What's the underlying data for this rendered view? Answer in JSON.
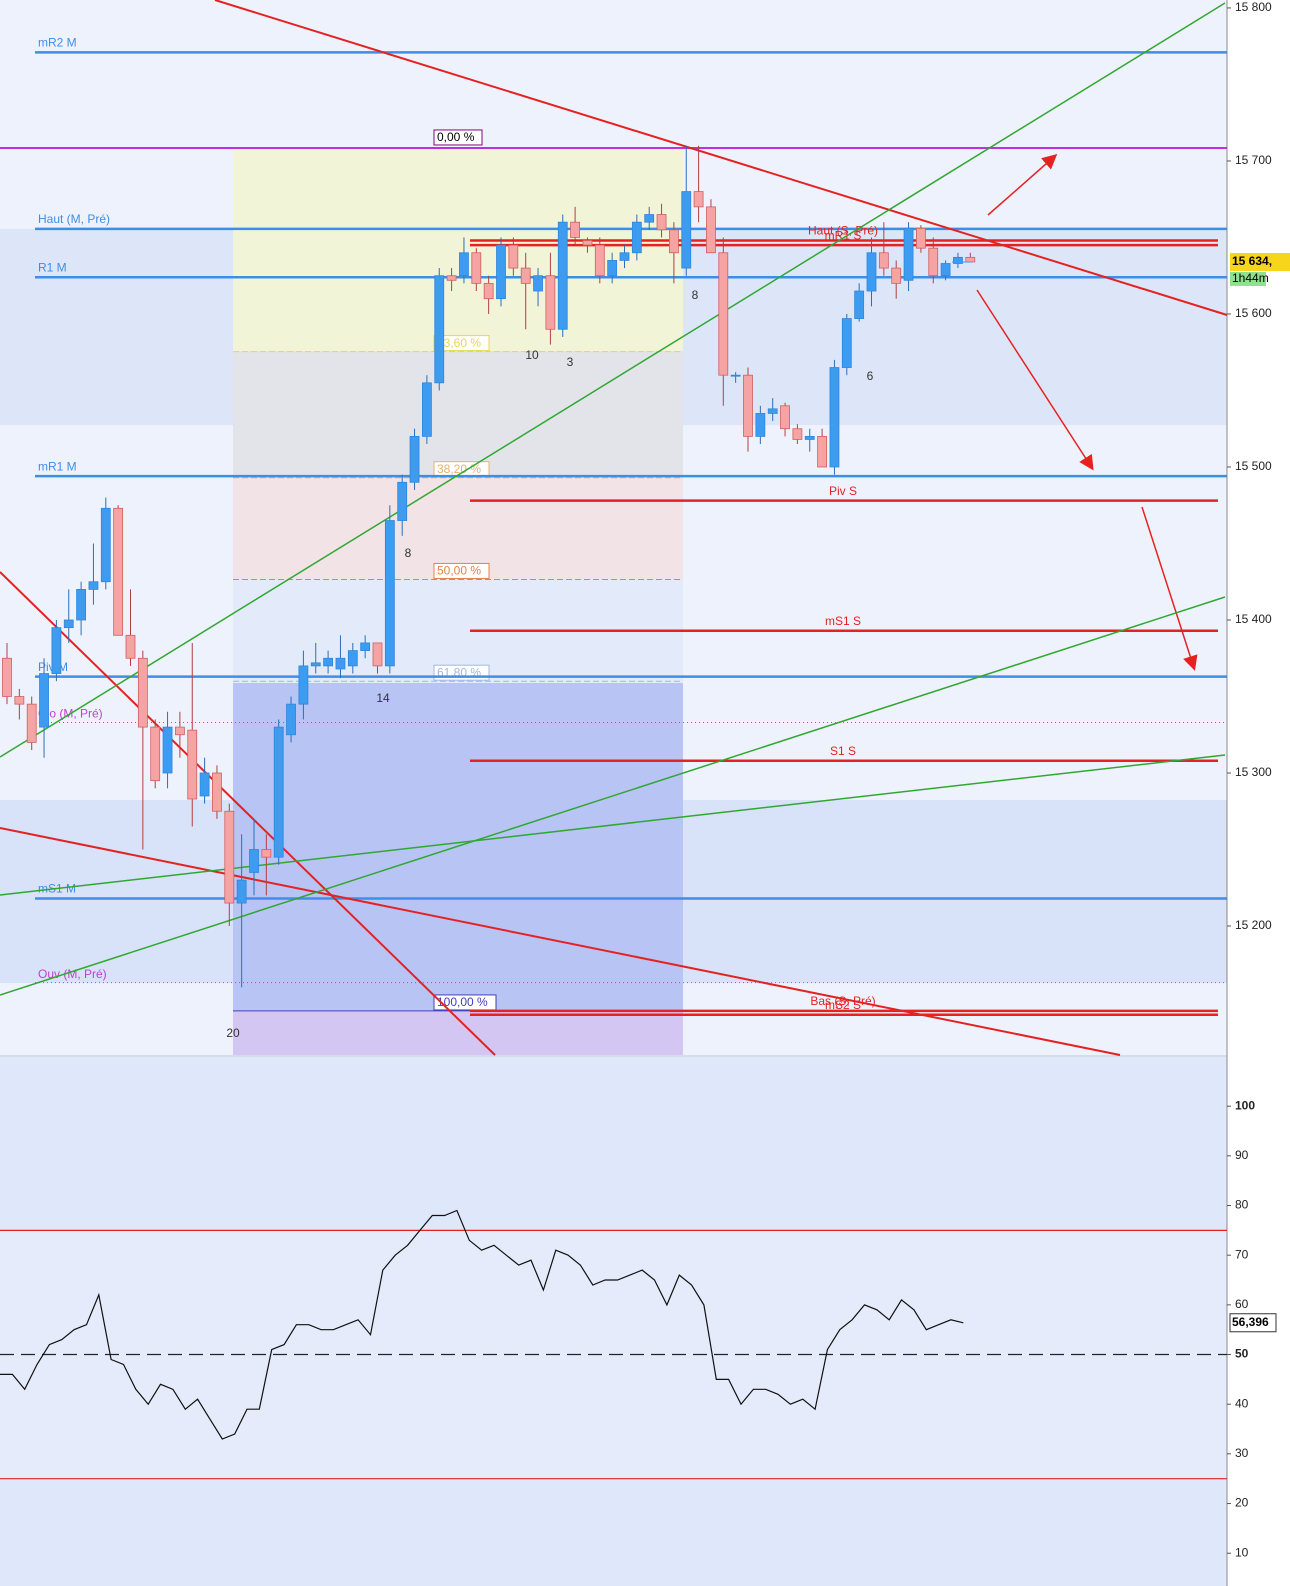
{
  "chart_data": [
    {
      "type": "candlestick",
      "ylim": [
        15115.7,
        15805.2
      ],
      "yticks": [
        {
          "value": 15800,
          "label": "15 800"
        },
        {
          "value": 15700,
          "label": "15 700"
        },
        {
          "value": 15600,
          "label": "15 600"
        },
        {
          "value": 15500,
          "label": "15 500"
        },
        {
          "value": 15400,
          "label": "15 400"
        },
        {
          "value": 15300,
          "label": "15 300"
        },
        {
          "value": 15200,
          "label": "15 200"
        }
      ],
      "up_color": "#3d9cf0",
      "down_color": "#f5a3a3",
      "open": [
        15375,
        15350,
        15345,
        15330,
        15365,
        15395,
        15400,
        15420,
        15425,
        15473,
        15390,
        15375,
        15330,
        15300,
        15330,
        15328,
        15285,
        15300,
        15275,
        15215,
        15235,
        15250,
        15245,
        15325,
        15345,
        15370,
        15370,
        15368,
        15370,
        15380,
        15385,
        15370,
        15465,
        15490,
        15520,
        15555,
        15625,
        15625,
        15640,
        15620,
        15610,
        15645,
        15630,
        15615,
        15625,
        15590,
        15660,
        15648,
        15645,
        15625,
        15635,
        15640,
        15660,
        15665,
        15655,
        15630,
        15680,
        15670,
        15640,
        15560,
        15560,
        15520,
        15535,
        15540,
        15525,
        15518,
        15520,
        15500,
        15565,
        15597,
        15615,
        15640,
        15630,
        15622,
        15656,
        15643,
        15625,
        15633,
        15637
      ],
      "high": [
        15385,
        15355,
        15350,
        15375,
        15400,
        15420,
        15425,
        15450,
        15480,
        15475,
        15420,
        15380,
        15335,
        15340,
        15340,
        15385,
        15310,
        15305,
        15280,
        15260,
        15270,
        15260,
        15335,
        15350,
        15380,
        15385,
        15380,
        15390,
        15385,
        15390,
        15385,
        15475,
        15495,
        15525,
        15560,
        15630,
        15630,
        15650,
        15643,
        15625,
        15650,
        15650,
        15640,
        15630,
        15640,
        15665,
        15670,
        15650,
        15650,
        15640,
        15645,
        15665,
        15670,
        15672,
        15660,
        15710,
        15710,
        15675,
        15650,
        15562,
        15565,
        15540,
        15545,
        15542,
        15528,
        15525,
        15525,
        15570,
        15600,
        15620,
        15650,
        15660,
        15635,
        15660,
        15658,
        15650,
        15635,
        15640,
        15640
      ],
      "low": [
        15345,
        15335,
        15315,
        15310,
        15360,
        15385,
        15390,
        15410,
        15420,
        15390,
        15370,
        15250,
        15290,
        15290,
        15310,
        15265,
        15280,
        15270,
        15200,
        15160,
        15220,
        15220,
        15240,
        15320,
        15335,
        15365,
        15365,
        15362,
        15365,
        15375,
        15365,
        15365,
        15455,
        15485,
        15515,
        15550,
        15615,
        15620,
        15615,
        15600,
        15605,
        15625,
        15590,
        15605,
        15580,
        15585,
        15645,
        15640,
        15620,
        15620,
        15630,
        15635,
        15655,
        15650,
        15620,
        15625,
        15660,
        15640,
        15540,
        15555,
        15510,
        15515,
        15530,
        15520,
        15515,
        15510,
        15500,
        15495,
        15560,
        15595,
        15605,
        15625,
        15610,
        15615,
        15640,
        15620,
        15622,
        15630,
        15634
      ],
      "close": [
        15350,
        15345,
        15320,
        15365,
        15395,
        15400,
        15420,
        15425,
        15473,
        15390,
        15375,
        15330,
        15295,
        15330,
        15325,
        15283,
        15300,
        15275,
        15215,
        15230,
        15250,
        15245,
        15330,
        15345,
        15370,
        15372,
        15375,
        15375,
        15380,
        15385,
        15370,
        15465,
        15490,
        15520,
        15555,
        15625,
        15622,
        15640,
        15620,
        15610,
        15645,
        15630,
        15620,
        15625,
        15590,
        15660,
        15650,
        15645,
        15625,
        15635,
        15640,
        15660,
        15665,
        15655,
        15640,
        15680,
        15670,
        15640,
        15560,
        15560,
        15520,
        15535,
        15538,
        15525,
        15518,
        15520,
        15500,
        15565,
        15597,
        15615,
        15640,
        15630,
        15620,
        15656,
        15643,
        15625,
        15633,
        15637,
        15634
      ],
      "last_price": {
        "value": 15634,
        "label": "15 634,"
      },
      "timer": "1h44m",
      "levels": [
        {
          "name": "mR2 M",
          "value": 15771,
          "color": "#3d8ee8",
          "anchor": "left"
        },
        {
          "name": "Haut (M, Pré)",
          "value": 15655.6,
          "color": "#3d8ee8",
          "anchor": "left"
        },
        {
          "name": "Haut (S, Pré)",
          "value": 15648,
          "color": "#e52222",
          "anchor": "center"
        },
        {
          "name": "mR1 S",
          "value": 15645,
          "color": "#e52222",
          "anchor": "center"
        },
        {
          "name": "R1 M",
          "value": 15624,
          "color": "#3d8ee8",
          "anchor": "left"
        },
        {
          "name": "mR1 M",
          "value": 15494,
          "color": "#3d8ee8",
          "anchor": "left"
        },
        {
          "name": "Piv S",
          "value": 15478,
          "color": "#e52222",
          "anchor": "center"
        },
        {
          "name": "mS1 S",
          "value": 15393,
          "color": "#e52222",
          "anchor": "center"
        },
        {
          "name": "Piv M",
          "value": 15363,
          "color": "#3d8ee8",
          "anchor": "left"
        },
        {
          "name": "Clo (M, Pré)",
          "value": 15333,
          "color": "#c040d0",
          "anchor": "left"
        },
        {
          "name": "S1 S",
          "value": 15308,
          "color": "#e52222",
          "anchor": "center"
        },
        {
          "name": "mS1 M",
          "value": 15218,
          "color": "#3d8ee8",
          "anchor": "left"
        },
        {
          "name": "Ouv (M, Pré)",
          "value": 15163,
          "color": "#c040d0",
          "anchor": "left"
        },
        {
          "name": "Bas (S, Pré)",
          "value": 15144.5,
          "color": "#e52222",
          "anchor": "center"
        },
        {
          "name": "mS2 S",
          "value": 15142,
          "color": "#e52222",
          "anchor": "center"
        }
      ],
      "fibonacci": [
        {
          "label": "0,00 %",
          "value": 15708.5,
          "color": "#8b0080"
        },
        {
          "label": "23,60 %",
          "value": 15575.4,
          "color": "#e8d84a"
        },
        {
          "label": "38,20 %",
          "value": 15493,
          "color": "#e8b070"
        },
        {
          "label": "50,00 %",
          "value": 15426.5,
          "color": "#e8804a"
        },
        {
          "label": "61,80 %",
          "value": 15360,
          "color": "#a0b8e0"
        },
        {
          "label": "100,00 %",
          "value": 15144.5,
          "color": "#4040c0"
        }
      ],
      "annotations": [
        "10",
        "3",
        "8",
        "8",
        "14",
        "6",
        "20"
      ]
    },
    {
      "type": "line",
      "ylim": [
        3.4,
        109.9
      ],
      "yticks": [
        10,
        20,
        30,
        40,
        50,
        60,
        70,
        80,
        90,
        100
      ],
      "color": "#111111",
      "values": [
        46,
        46,
        43,
        48,
        52,
        53,
        55,
        56,
        62,
        49,
        48,
        43,
        40,
        44,
        43,
        39,
        41,
        37,
        33,
        34,
        39,
        39,
        51,
        52,
        56,
        56,
        55,
        55,
        56,
        57,
        54,
        67,
        70,
        72,
        75,
        78,
        78,
        79,
        73,
        71,
        72,
        70,
        68,
        69,
        63,
        71,
        70,
        68,
        64,
        65,
        65,
        66,
        67,
        65,
        60,
        66,
        64,
        60,
        45,
        45,
        40,
        43,
        43,
        42,
        40,
        41,
        39,
        51,
        55,
        57,
        60,
        59,
        57,
        61,
        59,
        55,
        56,
        57,
        56.396
      ],
      "last_value": {
        "value": 56.396,
        "label": "56,396"
      },
      "levels": [
        {
          "value": 75,
          "color": "#e52222"
        },
        {
          "value": 50,
          "color": "#222222"
        },
        {
          "value": 25,
          "color": "#e52222"
        }
      ]
    }
  ]
}
